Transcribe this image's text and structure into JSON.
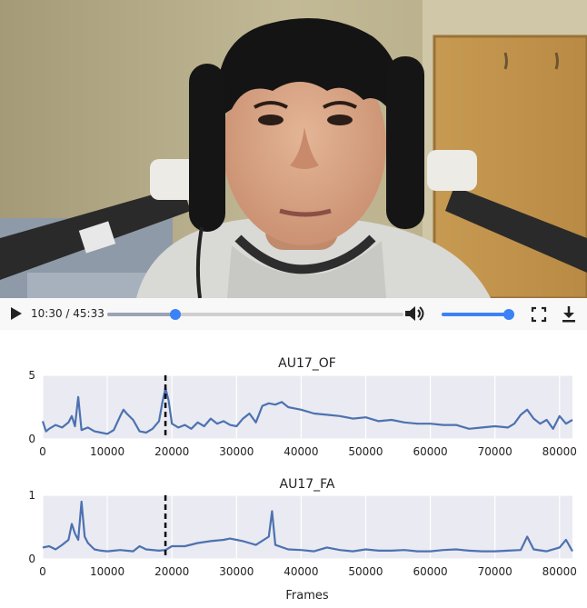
{
  "player": {
    "current_time": "10:30",
    "duration": "45:33",
    "time_text": "10:30 / 45:33",
    "progress": 0.23,
    "volume": 1.0
  },
  "icons": [
    "play-icon",
    "volume-icon",
    "fullscreen-icon",
    "download-icon"
  ],
  "colors": {
    "series": "#4c72b0",
    "plot_bg": "#eaeaf2",
    "marker": "#000000",
    "accent": "#3b82f6"
  },
  "chart_data": [
    {
      "type": "line",
      "title": "AU17_OF",
      "xlabel": "",
      "ylabel": "",
      "xlim": [
        0,
        82000
      ],
      "ylim": [
        0,
        5
      ],
      "xticks": [
        "0",
        "10000",
        "20000",
        "30000",
        "40000",
        "50000",
        "60000",
        "70000",
        "80000"
      ],
      "yticks": [
        "0",
        "5"
      ],
      "grid": true,
      "marker_x": 19000,
      "series": [
        {
          "x": [
            0,
            500,
            1000,
            2000,
            3000,
            4000,
            4500,
            5000,
            5500,
            6000,
            7000,
            8000,
            9000,
            10000,
            11000,
            12000,
            12500,
            13000,
            14000,
            15000,
            16000,
            17000,
            18000,
            18500,
            19000,
            19500,
            20000,
            21000,
            22000,
            23000,
            24000,
            25000,
            26000,
            27000,
            28000,
            29000,
            30000,
            31000,
            32000,
            33000,
            34000,
            35000,
            36000,
            37000,
            38000,
            39000,
            40000,
            42000,
            44000,
            46000,
            48000,
            50000,
            52000,
            54000,
            56000,
            58000,
            60000,
            62000,
            64000,
            66000,
            68000,
            70000,
            72000,
            73000,
            74000,
            75000,
            76000,
            77000,
            78000,
            79000,
            80000,
            81000,
            82000
          ],
          "values": [
            1.4,
            0.6,
            0.8,
            1.1,
            0.9,
            1.3,
            1.8,
            1.0,
            3.3,
            0.7,
            0.9,
            0.6,
            0.5,
            0.4,
            0.7,
            1.8,
            2.3,
            2.0,
            1.5,
            0.6,
            0.5,
            0.8,
            1.4,
            2.8,
            4.0,
            3.0,
            1.2,
            0.9,
            1.1,
            0.8,
            1.3,
            1.0,
            1.6,
            1.2,
            1.4,
            1.1,
            1.0,
            1.6,
            2.0,
            1.3,
            2.6,
            2.8,
            2.7,
            2.9,
            2.5,
            2.4,
            2.3,
            2.0,
            1.9,
            1.8,
            1.6,
            1.7,
            1.4,
            1.5,
            1.3,
            1.2,
            1.2,
            1.1,
            1.1,
            0.8,
            0.9,
            1.0,
            0.9,
            1.2,
            1.9,
            2.3,
            1.6,
            1.2,
            1.5,
            0.8,
            1.8,
            1.2,
            1.5
          ]
        }
      ]
    },
    {
      "type": "line",
      "title": "AU17_FA",
      "xlabel": "Frames",
      "ylabel": "",
      "xlim": [
        0,
        82000
      ],
      "ylim": [
        0,
        1
      ],
      "xticks": [
        "0",
        "10000",
        "20000",
        "30000",
        "40000",
        "50000",
        "60000",
        "70000",
        "80000"
      ],
      "yticks": [
        "0",
        "1"
      ],
      "grid": true,
      "marker_x": 19000,
      "series": [
        {
          "x": [
            0,
            1000,
            2000,
            3000,
            4000,
            4500,
            5000,
            5500,
            6000,
            6500,
            7000,
            8000,
            9000,
            10000,
            12000,
            14000,
            15000,
            16000,
            18000,
            19000,
            20000,
            22000,
            24000,
            26000,
            28000,
            29000,
            30000,
            31000,
            32000,
            33000,
            35000,
            35500,
            36000,
            38000,
            40000,
            42000,
            44000,
            46000,
            48000,
            50000,
            52000,
            54000,
            56000,
            58000,
            60000,
            62000,
            64000,
            66000,
            68000,
            70000,
            72000,
            74000,
            75000,
            76000,
            78000,
            80000,
            81000,
            82000
          ],
          "values": [
            0.18,
            0.2,
            0.15,
            0.22,
            0.3,
            0.55,
            0.4,
            0.3,
            0.9,
            0.35,
            0.25,
            0.15,
            0.13,
            0.12,
            0.14,
            0.12,
            0.2,
            0.15,
            0.13,
            0.14,
            0.2,
            0.2,
            0.25,
            0.28,
            0.3,
            0.32,
            0.3,
            0.28,
            0.25,
            0.22,
            0.35,
            0.75,
            0.22,
            0.15,
            0.14,
            0.12,
            0.18,
            0.14,
            0.12,
            0.15,
            0.13,
            0.13,
            0.14,
            0.12,
            0.12,
            0.14,
            0.15,
            0.13,
            0.12,
            0.12,
            0.13,
            0.14,
            0.35,
            0.15,
            0.12,
            0.18,
            0.3,
            0.12
          ]
        }
      ]
    }
  ]
}
